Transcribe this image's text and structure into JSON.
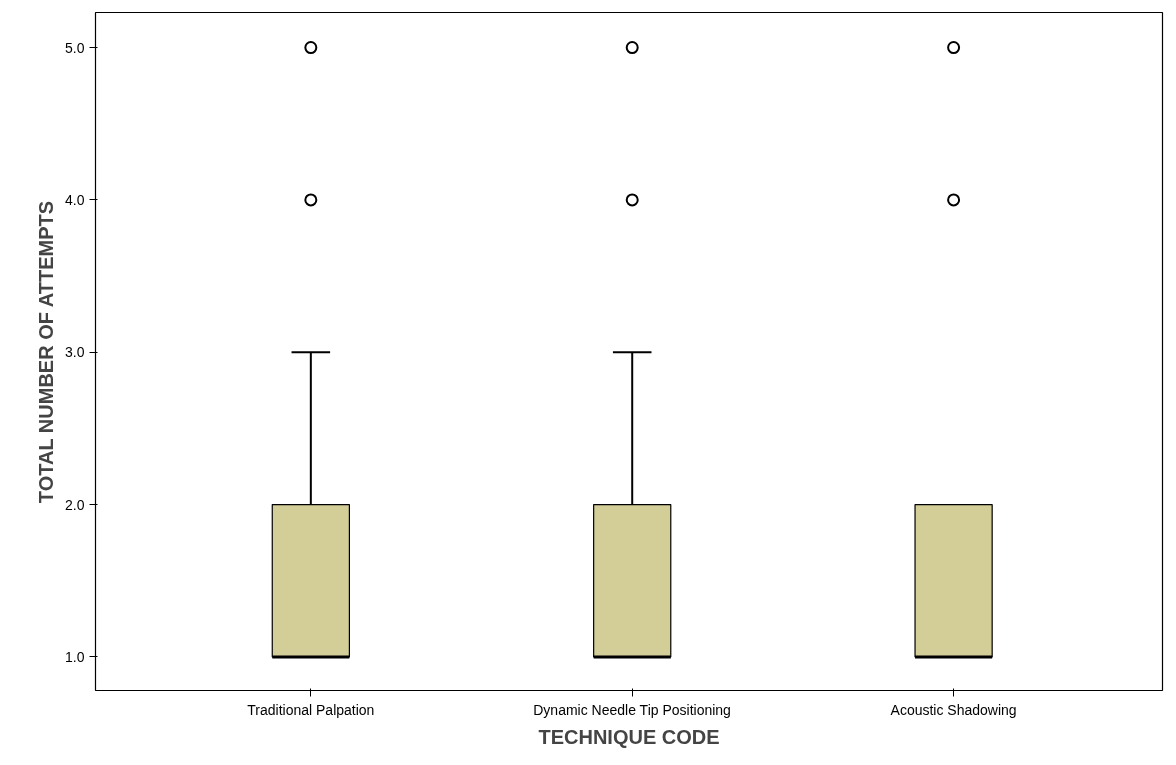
{
  "chart_data": {
    "type": "box",
    "xlabel": "TECHNIQUE CODE",
    "ylabel": "TOTAL NUMBER OF ATTEMPTS",
    "categories": [
      "Traditional Palpation",
      "Dynamic Needle Tip Positioning",
      "Acoustic Shadowing"
    ],
    "color": "#d3cd98",
    "boxes": [
      {
        "low": 1,
        "q1": 1,
        "median": 1,
        "q3": 2,
        "high": 3,
        "outliers": [
          4,
          5
        ]
      },
      {
        "low": 1,
        "q1": 1,
        "median": 1,
        "q3": 2,
        "high": 3,
        "outliers": [
          4,
          5
        ]
      },
      {
        "low": 1,
        "q1": 1,
        "median": 1,
        "q3": 2,
        "high": 2,
        "outliers": [
          4,
          5
        ]
      }
    ],
    "ylim": [
      0.78,
      5.23
    ],
    "yticks": [
      {
        "value": 1,
        "label": "1.0"
      },
      {
        "value": 2,
        "label": "2.0"
      },
      {
        "value": 3,
        "label": "3.0"
      },
      {
        "value": 4,
        "label": "4.0"
      },
      {
        "value": 5,
        "label": "5.0"
      }
    ]
  }
}
